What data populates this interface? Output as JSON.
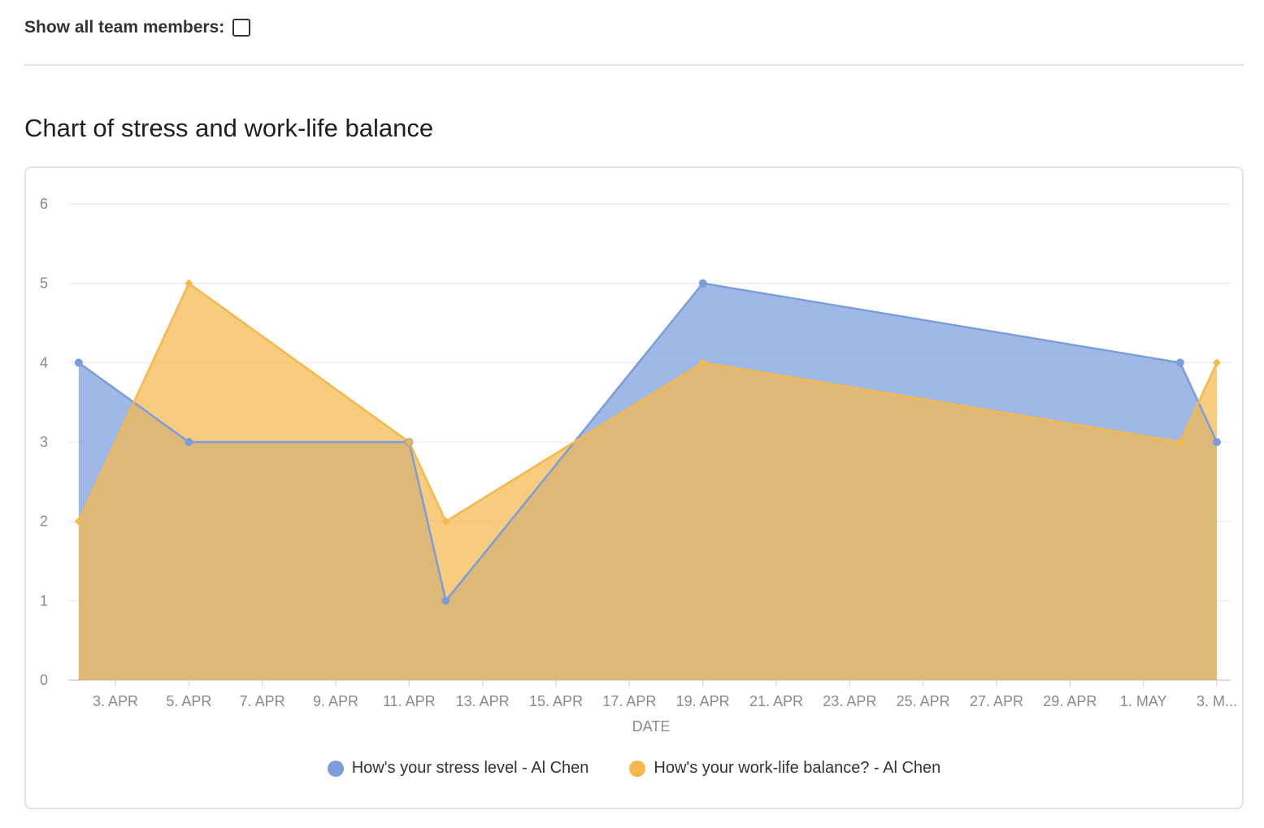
{
  "filter": {
    "label": "Show all team members:",
    "checked": false
  },
  "section": {
    "title": "Chart of stress and work-life balance"
  },
  "chart_data": {
    "type": "area",
    "title": "",
    "xlabel": "DATE",
    "ylabel": "",
    "ylim": [
      0,
      6
    ],
    "yticks": [
      0,
      1,
      2,
      3,
      4,
      5,
      6
    ],
    "xlim": [
      "2021-04-01",
      "2021-05-03"
    ],
    "xticks": [
      {
        "date": "2021-04-03",
        "label": "3. APR"
      },
      {
        "date": "2021-04-05",
        "label": "5. APR"
      },
      {
        "date": "2021-04-07",
        "label": "7. APR"
      },
      {
        "date": "2021-04-09",
        "label": "9. APR"
      },
      {
        "date": "2021-04-11",
        "label": "11. APR"
      },
      {
        "date": "2021-04-13",
        "label": "13. APR"
      },
      {
        "date": "2021-04-15",
        "label": "15. APR"
      },
      {
        "date": "2021-04-17",
        "label": "17. APR"
      },
      {
        "date": "2021-04-19",
        "label": "19. APR"
      },
      {
        "date": "2021-04-21",
        "label": "21. APR"
      },
      {
        "date": "2021-04-23",
        "label": "23. APR"
      },
      {
        "date": "2021-04-25",
        "label": "25. APR"
      },
      {
        "date": "2021-04-27",
        "label": "27. APR"
      },
      {
        "date": "2021-04-29",
        "label": "29. APR"
      },
      {
        "date": "2021-05-01",
        "label": "1. MAY"
      },
      {
        "date": "2021-05-03",
        "label": "3. M..."
      }
    ],
    "grid": true,
    "legend_position": "bottom",
    "series": [
      {
        "name": "How's your stress level - Al Chen",
        "color": "#7b9ddb",
        "fill": "rgba(123,157,219,0.72)",
        "marker": "circle",
        "points": [
          {
            "x": "2021-04-02",
            "y": 4
          },
          {
            "x": "2021-04-05",
            "y": 3
          },
          {
            "x": "2021-04-11",
            "y": 3
          },
          {
            "x": "2021-04-12",
            "y": 1
          },
          {
            "x": "2021-04-19",
            "y": 5
          },
          {
            "x": "2021-05-02",
            "y": 4
          },
          {
            "x": "2021-05-03",
            "y": 3
          }
        ]
      },
      {
        "name": "How's your work-life balance? - Al Chen",
        "color": "#f4b84c",
        "fill": "rgba(244,184,76,0.72)",
        "marker": "diamond",
        "points": [
          {
            "x": "2021-04-02",
            "y": 2
          },
          {
            "x": "2021-04-05",
            "y": 5
          },
          {
            "x": "2021-04-11",
            "y": 3
          },
          {
            "x": "2021-04-12",
            "y": 2
          },
          {
            "x": "2021-04-19",
            "y": 4
          },
          {
            "x": "2021-05-02",
            "y": 3
          },
          {
            "x": "2021-05-03",
            "y": 4
          }
        ]
      }
    ]
  }
}
